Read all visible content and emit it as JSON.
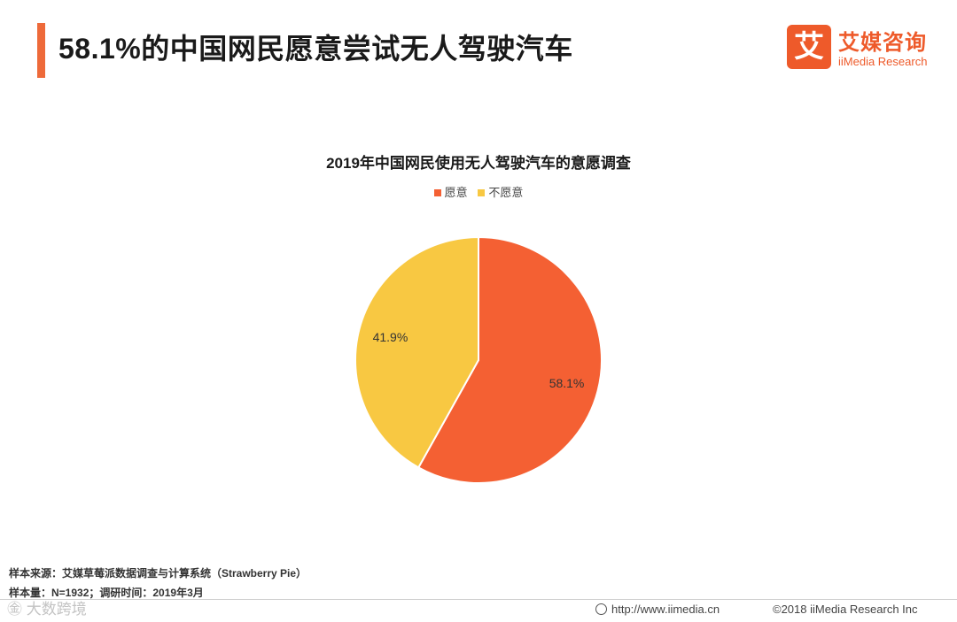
{
  "header": {
    "title": "58.1%的中国网民愿意尝试无人驾驶汽车",
    "logo_glyph": "艾",
    "logo_cn": "艾媒咨询",
    "logo_en": "iiMedia Research"
  },
  "chart_data": {
    "type": "pie",
    "title": "2019年中国网民使用无人驾驶汽车的意愿调查",
    "categories": [
      "愿意",
      "不愿意"
    ],
    "values": [
      58.1,
      41.9
    ],
    "labels": [
      "58.1%",
      "41.9%"
    ],
    "colors": [
      "#f46033",
      "#f8c842"
    ],
    "legend_position": "top-center"
  },
  "footer": {
    "source": "样本来源：艾媒草莓派数据调查与计算系统（Strawberry Pie）",
    "sample": "样本量：N=1932；调研时间：2019年3月",
    "url": "http://www.iimedia.cn",
    "copyright": "©2018  iiMedia Research  Inc",
    "watermark": "㊎ 大数跨境"
  }
}
